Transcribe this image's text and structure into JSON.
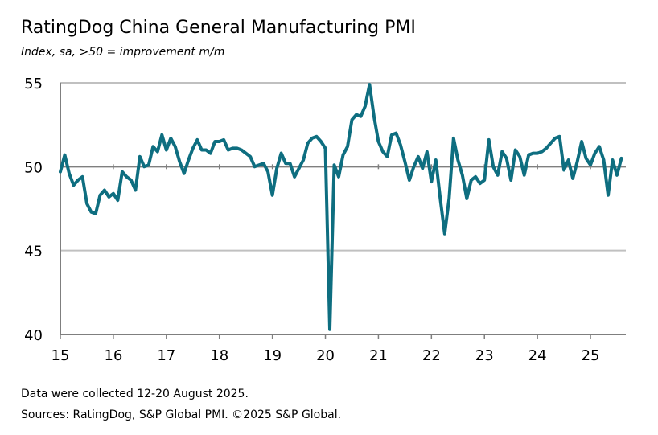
{
  "title": "RatingDog China General Manufacturing PMI",
  "subtitle": "Index, sa, >50 = improvement m/m",
  "notes": {
    "data_collected": "Data were collected 12-20 August 2025.",
    "sources": "Sources: RatingDog, S&P Global PMI. ©2025 S&P Global."
  },
  "colors": {
    "line": "#0e6e80",
    "grid": "#c0c0c0",
    "axis": "#7f7f7f",
    "baseline": "#000000"
  },
  "chart_data": {
    "type": "line",
    "title": "RatingDog China General Manufacturing PMI",
    "subtitle": "Index, sa, >50 = improvement m/m",
    "xlabel": "",
    "ylabel": "",
    "ylim": [
      40,
      55
    ],
    "xlim": [
      2015,
      2025.667
    ],
    "yticks": [
      40,
      45,
      50,
      55
    ],
    "ytick_labels": [
      "40",
      "45",
      "50",
      "55"
    ],
    "xticks": [
      2015,
      2016,
      2017,
      2018,
      2019,
      2020,
      2021,
      2022,
      2023,
      2024,
      2025
    ],
    "xtick_labels": [
      "15",
      "16",
      "17",
      "18",
      "19",
      "20",
      "21",
      "22",
      "23",
      "24",
      "25"
    ],
    "grid": {
      "horizontal": true,
      "vertical": false
    },
    "reference_line": 50,
    "legend": "none",
    "series": [
      {
        "x_start": "2015-01",
        "frequency": "monthly",
        "values": [
          49.7,
          50.7,
          49.6,
          48.9,
          49.2,
          49.4,
          47.8,
          47.3,
          47.2,
          48.3,
          48.6,
          48.2,
          48.4,
          48.0,
          49.7,
          49.4,
          49.2,
          48.6,
          50.6,
          50.0,
          50.1,
          51.2,
          50.9,
          51.9,
          51.0,
          51.7,
          51.2,
          50.3,
          49.6,
          50.4,
          51.1,
          51.6,
          51.0,
          51.0,
          50.8,
          51.5,
          51.5,
          51.6,
          51.0,
          51.1,
          51.1,
          51.0,
          50.8,
          50.6,
          50.0,
          50.1,
          50.2,
          49.7,
          48.3,
          49.9,
          50.8,
          50.2,
          50.2,
          49.4,
          49.9,
          50.4,
          51.4,
          51.7,
          51.8,
          51.5,
          51.1,
          40.3,
          50.1,
          49.4,
          50.7,
          51.2,
          52.8,
          53.1,
          53.0,
          53.6,
          54.9,
          53.0,
          51.5,
          50.9,
          50.6,
          51.9,
          52.0,
          51.3,
          50.3,
          49.2,
          50.0,
          50.6,
          49.9,
          50.9,
          49.1,
          50.4,
          48.1,
          46.0,
          48.1,
          51.7,
          50.4,
          49.5,
          48.1,
          49.2,
          49.4,
          49.0,
          49.2,
          51.6,
          50.0,
          49.5,
          50.9,
          50.5,
          49.2,
          51.0,
          50.6,
          49.5,
          50.7,
          50.8,
          50.8,
          50.9,
          51.1,
          51.4,
          51.7,
          51.8,
          49.8,
          50.4,
          49.3,
          50.3,
          51.5,
          50.5,
          50.1,
          50.8,
          51.2,
          50.4,
          48.3,
          50.4,
          49.5,
          50.5
        ]
      }
    ]
  }
}
